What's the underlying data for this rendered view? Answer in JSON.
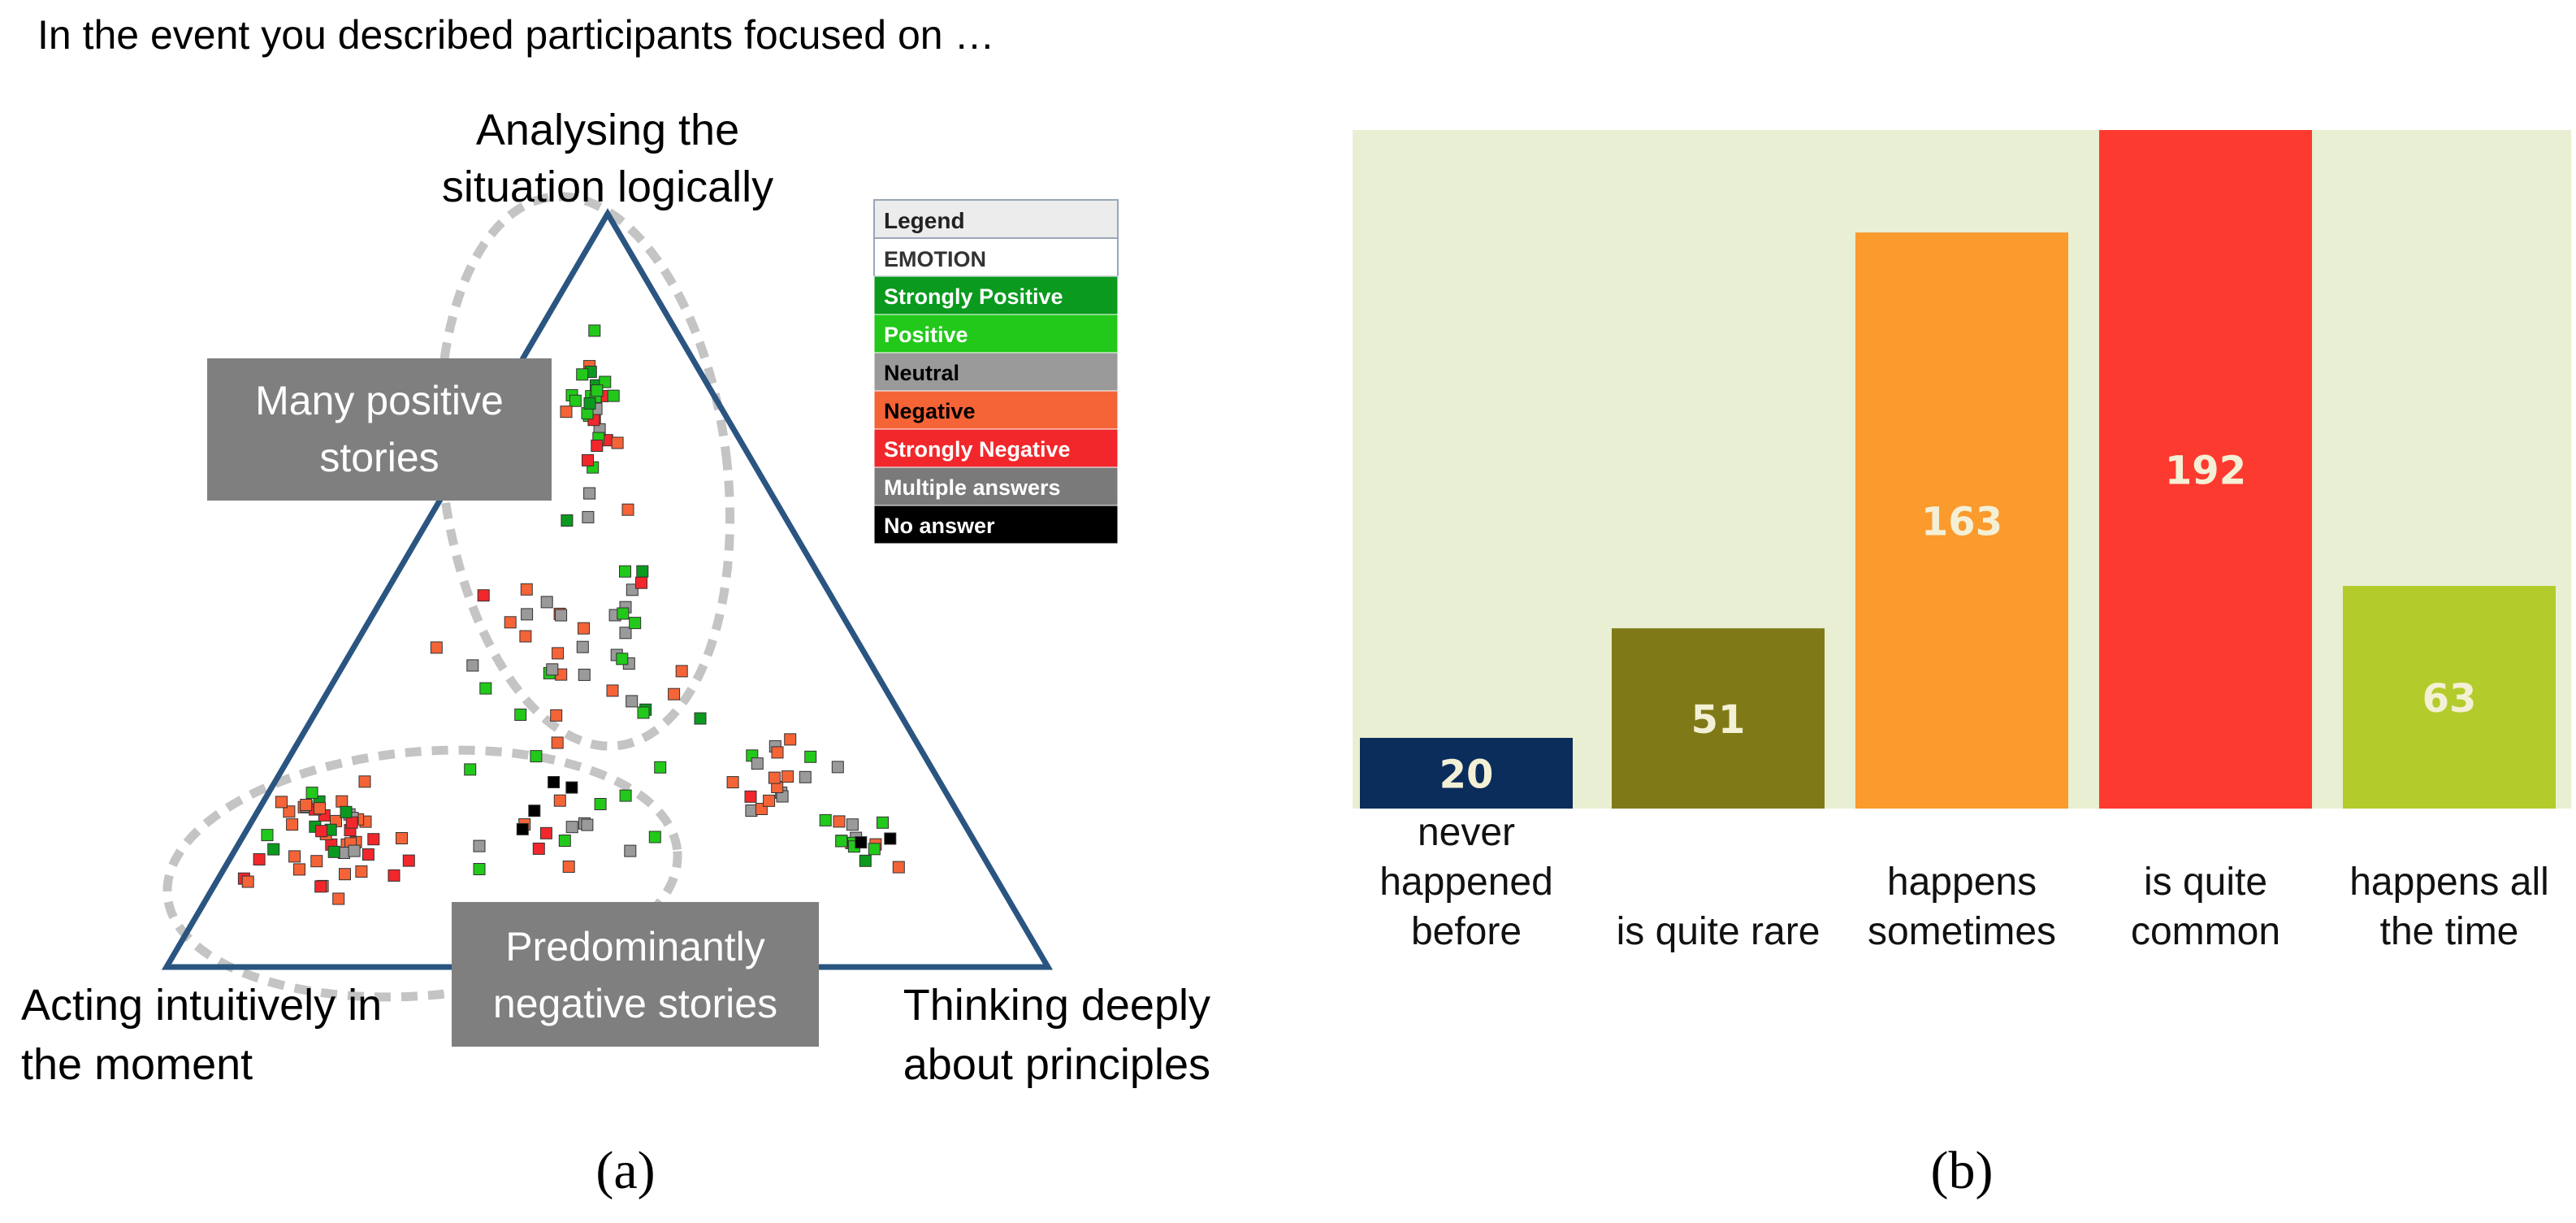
{
  "colors": {
    "triangle": "#2a5580",
    "dashed": "#c4c4c4",
    "callout_bg": "#7f7f7f",
    "chart_bg": "#e8efd2"
  },
  "panel_a": {
    "question": "In the event you described participants focused on …",
    "vertex_top_line1": "Analysing the",
    "vertex_top_line2": "situation logically",
    "vertex_left_line1": "Acting intuitively in",
    "vertex_left_line2": "the moment",
    "vertex_right_line1": "Thinking deeply",
    "vertex_right_line2": "about principles",
    "callout_positive_line1": "Many positive",
    "callout_positive_line2": "stories",
    "callout_negative_line1": "Predominantly",
    "callout_negative_line2": "negative stories",
    "label": "(a)",
    "legend": {
      "title": "Legend",
      "header": "EMOTION",
      "items": [
        {
          "label": "Strongly Positive",
          "color": "#0a9a1e",
          "text_color": "#ffffff"
        },
        {
          "label": "Positive",
          "color": "#22c91a",
          "text_color": "#ffffff"
        },
        {
          "label": "Neutral",
          "color": "#9a9a9a",
          "text_color": "#000000"
        },
        {
          "label": "Negative",
          "color": "#f56437",
          "text_color": "#000000"
        },
        {
          "label": "Strongly Negative",
          "color": "#f2272b",
          "text_color": "#ffffff"
        },
        {
          "label": "Multiple answers",
          "color": "#7a7a7a",
          "text_color": "#ffffff"
        },
        {
          "label": "No answer",
          "color": "#000000",
          "text_color": "#ffffff"
        }
      ]
    }
  },
  "chart_data": {
    "type": "bar",
    "title": "",
    "xlabel": "",
    "ylabel": "",
    "ylim": [
      0,
      192
    ],
    "grid": false,
    "legend": "none",
    "categories": [
      [
        "never",
        "happened",
        "before"
      ],
      [
        "is quite rare"
      ],
      [
        "happens",
        "sometimes"
      ],
      [
        "is quite",
        "common"
      ],
      [
        "happens all",
        "the time"
      ]
    ],
    "values": [
      20,
      51,
      163,
      192,
      63
    ],
    "bar_colors": [
      "#0b2d5c",
      "#7f7a17",
      "#fb9a2d",
      "#fd3a2f",
      "#b4cc2b"
    ],
    "label": "(b)"
  }
}
